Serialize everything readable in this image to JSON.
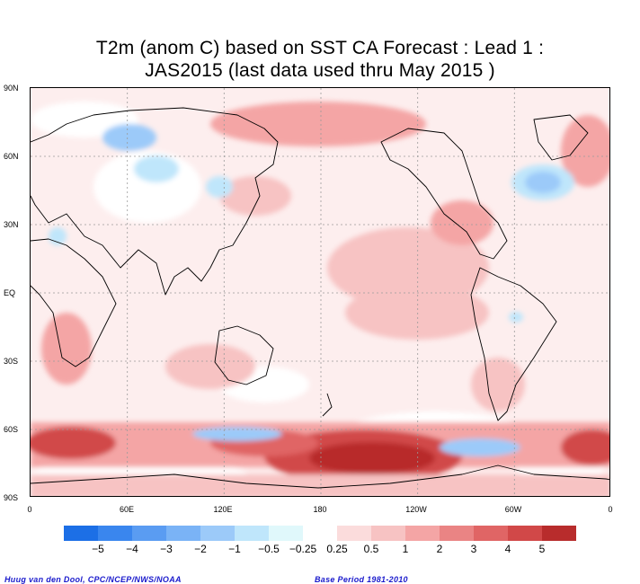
{
  "title_line1": "T2m (anom C) based on SST CA Forecast : Lead 1 :",
  "title_line2": "JAS2015 (last data used thru May 2015 )",
  "lat_labels": [
    "90N",
    "60N",
    "30N",
    "EQ",
    "30S",
    "60S",
    "90S"
  ],
  "lon_labels": [
    "0",
    "60E",
    "120E",
    "180",
    "120W",
    "60W",
    "0"
  ],
  "colorbar": {
    "colors": [
      "#1c6fe6",
      "#3a86ee",
      "#5a9cf2",
      "#7ab3f6",
      "#9ccaf9",
      "#bfe6fb",
      "#e0f8fb",
      "#ffffff",
      "#fbdcdc",
      "#f7c3c3",
      "#f4a5a5",
      "#ea8484",
      "#e06565",
      "#d14848",
      "#b82c2c"
    ],
    "labels": [
      "−5",
      "−4",
      "−3",
      "−2",
      "−1",
      "−0.5",
      "−0.25",
      "0.25",
      "0.5",
      "1",
      "2",
      "3",
      "4",
      "5"
    ]
  },
  "credit": "Huug van den Dool, CPC/NCEP/NWS/NOAA",
  "base_period": "Base Period 1981-2010"
}
